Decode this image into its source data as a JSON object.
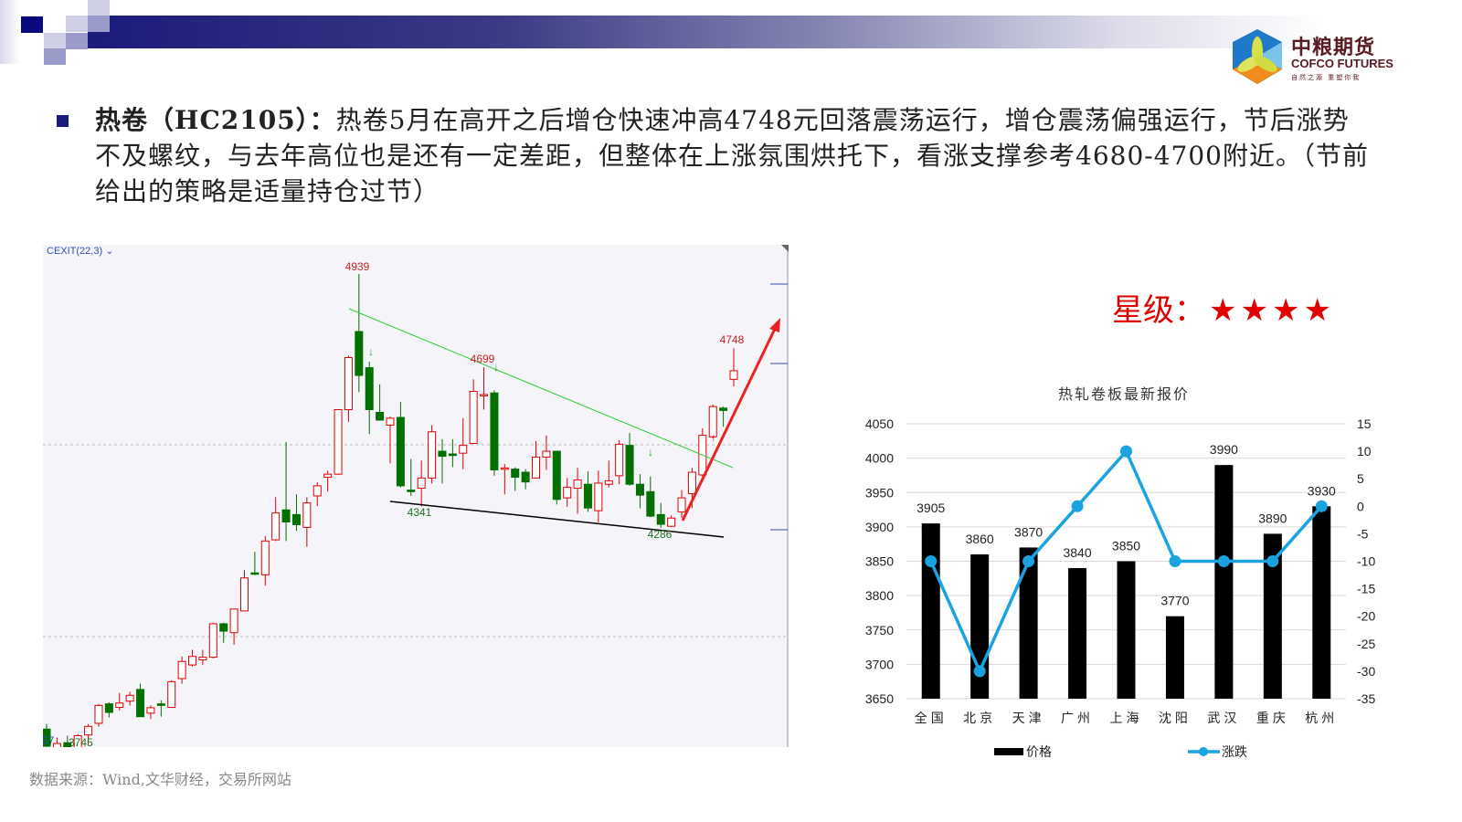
{
  "header": {
    "logo": {
      "name_cn": "中粮期货",
      "name_en": "COFCO FUTURES",
      "tagline": "自然之源 重塑你我"
    }
  },
  "body": {
    "title": "热卷（HC2105）：",
    "text": "热卷5月在高开之后增仓快速冲高4748元回落震荡运行，增仓震荡偏强运行，节后涨势不及螺纹，与去年高位也是还有一定差距，但整体在上涨氛围烘托下，看涨支撑参考4680-4700附近。（节前给出的策略是适量持仓过节）"
  },
  "rating": {
    "label": "星级：",
    "stars": 4,
    "star_glyph": "★"
  },
  "source": "数据来源：Wind,文华财经，交易所网站",
  "chart_data": [
    {
      "type": "candlestick",
      "indicator_label": "CEXIT(22,3)",
      "annotations": [
        "4939",
        "4699",
        "4341",
        "4286",
        "4748",
        "3745",
        "57"
      ],
      "colors": {
        "up": "#e00000",
        "down": "#007000",
        "trendline": "#33cc33",
        "support": "#000000",
        "arrow": "#ee2222"
      },
      "ohlc": [
        [
          3768,
          3781,
          3720,
          3724
        ],
        [
          3716,
          3746,
          3711,
          3731
        ],
        [
          3733,
          3751,
          3711,
          3716
        ],
        [
          3716,
          3755,
          3711,
          3751
        ],
        [
          3753,
          3781,
          3729,
          3775
        ],
        [
          3783,
          3833,
          3774,
          3829
        ],
        [
          3833,
          3837,
          3798,
          3811
        ],
        [
          3824,
          3861,
          3816,
          3835
        ],
        [
          3840,
          3864,
          3829,
          3855
        ],
        [
          3870,
          3885,
          3800,
          3800
        ],
        [
          3809,
          3829,
          3794,
          3823
        ],
        [
          3833,
          3842,
          3800,
          3829
        ],
        [
          3824,
          3894,
          3824,
          3890
        ],
        [
          3898,
          3955,
          3885,
          3942
        ],
        [
          3933,
          3972,
          3929,
          3955
        ],
        [
          3946,
          3972,
          3933,
          3953
        ],
        [
          3953,
          4042,
          3950,
          4039
        ],
        [
          4039,
          4042,
          3990,
          4020
        ],
        [
          4016,
          4077,
          3985,
          4077
        ],
        [
          4072,
          4177,
          4072,
          4157
        ],
        [
          4170,
          4224,
          4164,
          4167
        ],
        [
          4165,
          4265,
          4137,
          4252
        ],
        [
          4255,
          4365,
          4252,
          4324
        ],
        [
          4332,
          4507,
          4252,
          4301
        ],
        [
          4320,
          4372,
          4278,
          4294
        ],
        [
          4287,
          4365,
          4237,
          4350
        ],
        [
          4368,
          4403,
          4342,
          4394
        ],
        [
          4416,
          4433,
          4379,
          4424
        ],
        [
          4424,
          4591,
          4422,
          4590
        ],
        [
          4590,
          4729,
          4559,
          4724
        ],
        [
          4791,
          4939,
          4635,
          4678
        ],
        [
          4698,
          4713,
          4527,
          4590
        ],
        [
          4583,
          4655,
          4563,
          4563
        ],
        [
          4550,
          4572,
          4452,
          4568
        ],
        [
          4570,
          4610,
          4390,
          4394
        ],
        [
          4383,
          4463,
          4368,
          4379
        ],
        [
          4388,
          4459,
          4341,
          4414
        ],
        [
          4414,
          4550,
          4400,
          4533
        ],
        [
          4483,
          4514,
          4400,
          4470
        ],
        [
          4476,
          4514,
          4442,
          4472
        ],
        [
          4478,
          4568,
          4437,
          4498
        ],
        [
          4503,
          4668,
          4501,
          4637
        ],
        [
          4626,
          4699,
          4590,
          4629
        ],
        [
          4633,
          4640,
          4420,
          4435
        ],
        [
          4437,
          4450,
          4372,
          4440
        ],
        [
          4437,
          4442,
          4381,
          4416
        ],
        [
          4429,
          4437,
          4385,
          4404
        ],
        [
          4414,
          4509,
          4414,
          4468
        ],
        [
          4468,
          4523,
          4435,
          4483
        ],
        [
          4483,
          4483,
          4346,
          4359
        ],
        [
          4363,
          4414,
          4340,
          4390
        ],
        [
          4388,
          4440,
          4322,
          4409
        ],
        [
          4398,
          4431,
          4327,
          4337
        ],
        [
          4330,
          4433,
          4300,
          4401
        ],
        [
          4398,
          4459,
          4390,
          4407
        ],
        [
          4420,
          4511,
          4398,
          4501
        ],
        [
          4498,
          4530,
          4394,
          4398
        ],
        [
          4398,
          4424,
          4336,
          4370
        ],
        [
          4379,
          4418,
          4313,
          4316
        ],
        [
          4320,
          4350,
          4286,
          4295
        ],
        [
          4290,
          4318,
          4288,
          4311
        ],
        [
          4327,
          4383,
          4311,
          4363
        ],
        [
          4374,
          4440,
          4337,
          4429
        ],
        [
          4422,
          4542,
          4414,
          4524
        ],
        [
          4520,
          4603,
          4516,
          4598
        ],
        [
          4594,
          4598,
          4546,
          4588
        ],
        [
          4668,
          4748,
          4650,
          4690
        ]
      ]
    },
    {
      "type": "bar+line",
      "title": "热轧卷板最新报价",
      "categories": [
        "全国",
        "北京",
        "天津",
        "广州",
        "上海",
        "沈阳",
        "武汉",
        "重庆",
        "杭州"
      ],
      "series": [
        {
          "name": "价格",
          "type": "bar",
          "axis": "left",
          "color": "#000000",
          "values": [
            3905,
            3860,
            3870,
            3840,
            3850,
            3770,
            3990,
            3890,
            3930
          ]
        },
        {
          "name": "涨跌",
          "type": "line",
          "axis": "right",
          "color": "#1aa3e0",
          "values": [
            -10,
            -30,
            -10,
            0,
            10,
            -10,
            -10,
            -10,
            0
          ]
        }
      ],
      "ylim_left": [
        3650,
        4050
      ],
      "yticks_left": [
        "4050",
        "4000",
        "3950",
        "3900",
        "3850",
        "3800",
        "3750",
        "3700",
        "3650"
      ],
      "ylim_right": [
        -35,
        15
      ],
      "yticks_right": [
        "15",
        "10",
        "5",
        "0",
        "-5",
        "-10",
        "-15",
        "-20",
        "-25",
        "-30",
        "-35"
      ],
      "grid": true,
      "legend": "bottom"
    }
  ]
}
